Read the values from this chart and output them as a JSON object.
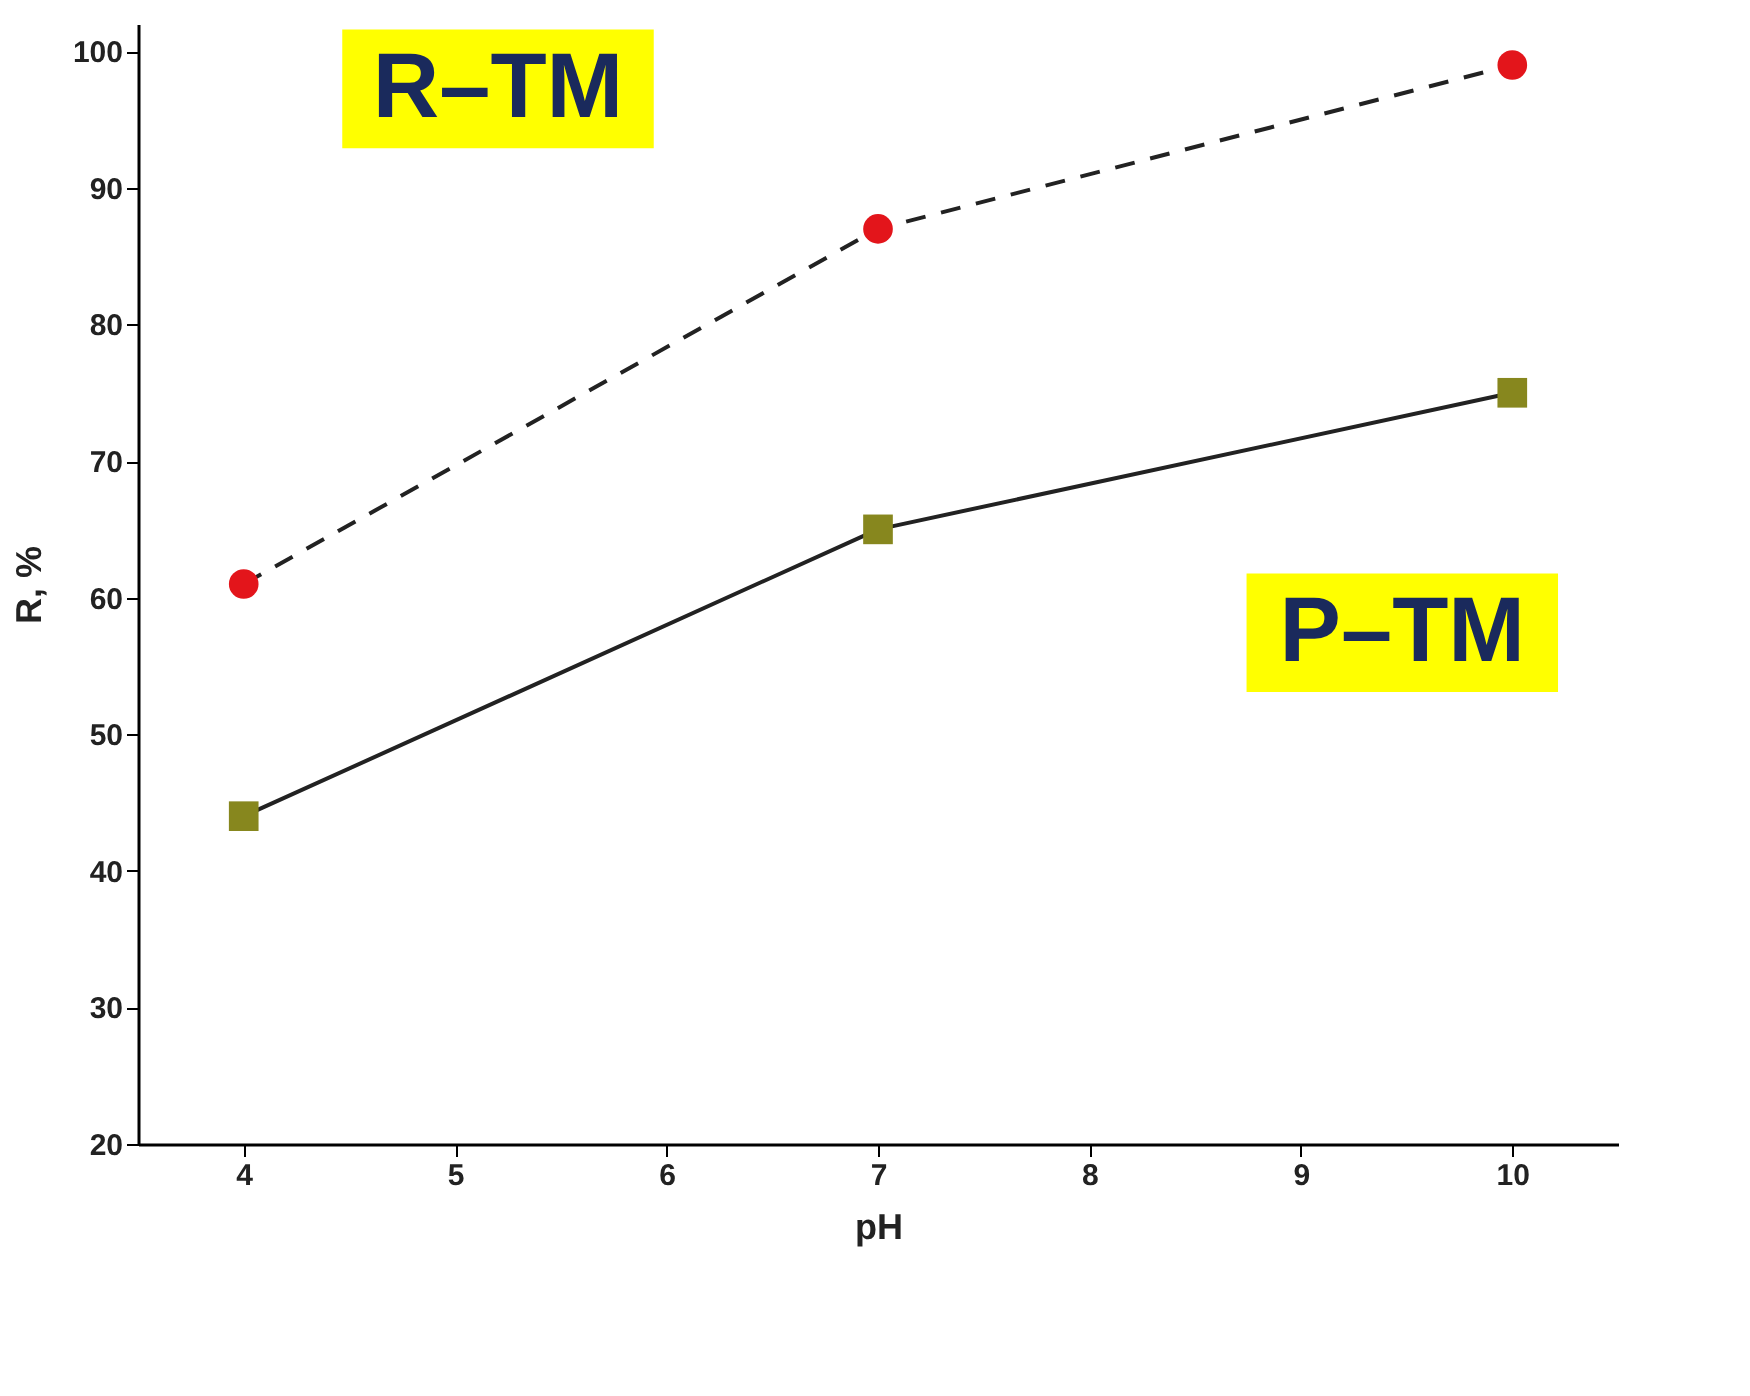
{
  "chart_data": {
    "type": "line",
    "xlabel": "pH",
    "ylabel": "R, %",
    "x": [
      4,
      7,
      10
    ],
    "series": [
      {
        "name": "R–TM",
        "color": "#e3151b",
        "values": [
          61,
          87,
          99
        ],
        "marker": "circle",
        "line_style": "dashed"
      },
      {
        "name": "P–TM",
        "color": "#87871e",
        "values": [
          44,
          65,
          75
        ],
        "marker": "square",
        "line_style": "solid"
      }
    ],
    "xlim": [
      3.5,
      10.5
    ],
    "xticks": [
      {
        "value": 4,
        "label": "4"
      },
      {
        "value": 5,
        "label": "5"
      },
      {
        "value": 6,
        "label": "6"
      },
      {
        "value": 7,
        "label": "7"
      },
      {
        "value": 8,
        "label": "8"
      },
      {
        "value": 9,
        "label": "9"
      },
      {
        "value": 10,
        "label": "10"
      }
    ],
    "ylim": [
      20,
      102
    ],
    "yticks": [
      20,
      30,
      40,
      50,
      60,
      70,
      80,
      90,
      100
    ],
    "grid": false,
    "legend": false
  }
}
